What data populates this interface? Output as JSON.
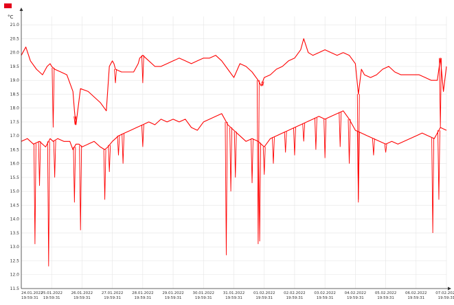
{
  "chart_data": {
    "type": "line",
    "title": "",
    "xlabel": "",
    "ylabel": "°C",
    "ylim": [
      11.5,
      21.3
    ],
    "yticks": [
      "21.0",
      "20.5",
      "20.0",
      "19.5",
      "19.0",
      "18.5",
      "18.0",
      "17.5",
      "17.0",
      "16.5",
      "16.0",
      "15.5",
      "15.0",
      "14.5",
      "14.0",
      "13.5",
      "13.0",
      "12.5",
      "12.0",
      "11.5"
    ],
    "xlim": [
      0,
      14
    ],
    "categories": [
      {
        "date": "24.01.2022",
        "time": "19:59:31"
      },
      {
        "date": "25.01.2022",
        "time": "19:59:31"
      },
      {
        "date": "26.01.2022",
        "time": "19:59:31"
      },
      {
        "date": "27.01.2022",
        "time": "19:59:31"
      },
      {
        "date": "28.01.2022",
        "time": "19:59:31"
      },
      {
        "date": "29.01.2022",
        "time": "19:59:31"
      },
      {
        "date": "30.01.2022",
        "time": "19:59:31"
      },
      {
        "date": "31.01.2022",
        "time": "19:59:31"
      },
      {
        "date": "01.02.2022",
        "time": "19:59:31"
      },
      {
        "date": "02.02.2022",
        "time": "19:59:31"
      },
      {
        "date": "03.02.2022",
        "time": "19:59:31"
      },
      {
        "date": "04.02.2022",
        "time": "19:59:31"
      },
      {
        "date": "05.02.2022",
        "time": "19:59:31"
      },
      {
        "date": "06.02.2022",
        "time": "19:59:31"
      },
      {
        "date": "07.02.2022",
        "time": "19:59:31"
      }
    ],
    "grid": true,
    "legend": "top-left",
    "series": [
      {
        "color": "#ff0000",
        "x": [
          0,
          0.15,
          0.3,
          0.5,
          0.7,
          0.85,
          0.95,
          1.0,
          1.1,
          1.3,
          1.5,
          1.7,
          1.75,
          1.8,
          1.95,
          2.2,
          2.4,
          2.6,
          2.8,
          2.9,
          3.0,
          3.05,
          3.1,
          3.3,
          3.5,
          3.7,
          3.85,
          3.9,
          4.0,
          4.2,
          4.4,
          4.6,
          4.8,
          5.0,
          5.2,
          5.4,
          5.6,
          5.8,
          6.0,
          6.2,
          6.4,
          6.6,
          6.8,
          7.0,
          7.2,
          7.4,
          7.6,
          7.8,
          7.9,
          8.0,
          8.2,
          8.4,
          8.6,
          8.8,
          9.0,
          9.2,
          9.3,
          9.45,
          9.6,
          9.8,
          10.0,
          10.2,
          10.4,
          10.6,
          10.8,
          11.0,
          11.1,
          11.2,
          11.3,
          11.5,
          11.7,
          11.9,
          12.1,
          12.3,
          12.5,
          12.7,
          12.9,
          13.1,
          13.3,
          13.5,
          13.7,
          13.8,
          13.9,
          14.0
        ],
        "y": [
          19.9,
          20.2,
          19.7,
          19.4,
          19.2,
          19.5,
          19.6,
          19.5,
          19.4,
          19.3,
          19.2,
          18.6,
          17.9,
          17.4,
          18.7,
          18.6,
          18.4,
          18.2,
          17.9,
          19.5,
          19.7,
          19.6,
          19.4,
          19.3,
          19.3,
          19.3,
          19.6,
          19.8,
          19.9,
          19.7,
          19.5,
          19.5,
          19.6,
          19.7,
          19.8,
          19.7,
          19.6,
          19.7,
          19.8,
          19.8,
          19.9,
          19.7,
          19.4,
          19.1,
          19.6,
          19.5,
          19.3,
          19.0,
          18.8,
          19.1,
          19.2,
          19.4,
          19.5,
          19.7,
          19.8,
          20.1,
          20.5,
          20.0,
          19.9,
          20.0,
          20.1,
          20.0,
          19.9,
          20.0,
          19.9,
          19.6,
          18.5,
          19.4,
          19.2,
          19.1,
          19.2,
          19.4,
          19.5,
          19.3,
          19.2,
          19.2,
          19.2,
          19.2,
          19.1,
          19.0,
          19.0,
          19.8,
          18.6,
          19.5
        ]
      },
      {
        "color": "#ff0000",
        "x": [
          0,
          0.2,
          0.4,
          0.6,
          0.8,
          0.95,
          1.05,
          1.2,
          1.4,
          1.6,
          1.7,
          1.8,
          1.9,
          2.0,
          2.2,
          2.4,
          2.6,
          2.75,
          2.85,
          3.0,
          3.2,
          3.4,
          3.6,
          3.8,
          4.0,
          4.2,
          4.4,
          4.6,
          4.8,
          5.0,
          5.2,
          5.4,
          5.6,
          5.8,
          6.0,
          6.2,
          6.4,
          6.6,
          6.8,
          7.0,
          7.2,
          7.4,
          7.6,
          7.8,
          8.0,
          8.2,
          8.4,
          8.6,
          8.8,
          9.0,
          9.2,
          9.4,
          9.6,
          9.8,
          10.0,
          10.2,
          10.4,
          10.6,
          10.8,
          11.0,
          11.2,
          11.4,
          11.6,
          11.8,
          12.0,
          12.2,
          12.4,
          12.6,
          12.8,
          13.0,
          13.2,
          13.4,
          13.6,
          13.8,
          14.0
        ],
        "y": [
          16.8,
          16.9,
          16.7,
          16.8,
          16.6,
          16.9,
          16.8,
          16.9,
          16.8,
          16.8,
          16.5,
          16.7,
          16.7,
          16.6,
          16.7,
          16.8,
          16.6,
          16.5,
          16.6,
          16.8,
          17.0,
          17.1,
          17.2,
          17.3,
          17.4,
          17.5,
          17.4,
          17.6,
          17.5,
          17.6,
          17.5,
          17.6,
          17.3,
          17.2,
          17.5,
          17.6,
          17.7,
          17.8,
          17.4,
          17.2,
          17.0,
          16.8,
          16.9,
          16.8,
          16.6,
          16.9,
          17.0,
          17.1,
          17.2,
          17.3,
          17.4,
          17.5,
          17.6,
          17.7,
          17.6,
          17.7,
          17.8,
          17.9,
          17.6,
          17.2,
          17.1,
          17.0,
          16.9,
          16.8,
          16.7,
          16.8,
          16.7,
          16.8,
          16.9,
          17.0,
          17.1,
          17.0,
          16.9,
          17.3,
          17.2
        ]
      }
    ],
    "dips": [
      {
        "series": 0,
        "x": 1.05,
        "y": 17.3
      },
      {
        "series": 0,
        "x": 1.77,
        "y": 17.4
      },
      {
        "series": 0,
        "x": 3.1,
        "y": 18.9
      },
      {
        "series": 0,
        "x": 4.0,
        "y": 18.9
      },
      {
        "series": 0,
        "x": 7.8,
        "y": 13.1
      },
      {
        "series": 0,
        "x": 7.95,
        "y": 18.8
      },
      {
        "series": 0,
        "x": 11.1,
        "y": 14.7
      },
      {
        "series": 0,
        "x": 13.8,
        "y": 17.3
      },
      {
        "series": 1,
        "x": 0.45,
        "y": 13.1
      },
      {
        "series": 1,
        "x": 0.6,
        "y": 15.2
      },
      {
        "series": 1,
        "x": 0.9,
        "y": 12.3
      },
      {
        "series": 1,
        "x": 1.1,
        "y": 15.5
      },
      {
        "series": 1,
        "x": 1.75,
        "y": 14.6
      },
      {
        "series": 1,
        "x": 1.95,
        "y": 13.6
      },
      {
        "series": 1,
        "x": 2.75,
        "y": 14.7
      },
      {
        "series": 1,
        "x": 2.9,
        "y": 15.7
      },
      {
        "series": 1,
        "x": 3.2,
        "y": 16.3
      },
      {
        "series": 1,
        "x": 3.35,
        "y": 16.0
      },
      {
        "series": 1,
        "x": 4.0,
        "y": 16.6
      },
      {
        "series": 1,
        "x": 6.75,
        "y": 12.7
      },
      {
        "series": 1,
        "x": 6.9,
        "y": 15.0
      },
      {
        "series": 1,
        "x": 7.05,
        "y": 15.5
      },
      {
        "series": 1,
        "x": 7.6,
        "y": 15.3
      },
      {
        "series": 1,
        "x": 7.85,
        "y": 13.2
      },
      {
        "series": 1,
        "x": 8.0,
        "y": 15.6
      },
      {
        "series": 1,
        "x": 8.3,
        "y": 16.0
      },
      {
        "series": 1,
        "x": 8.7,
        "y": 16.4
      },
      {
        "series": 1,
        "x": 9.0,
        "y": 16.3
      },
      {
        "series": 1,
        "x": 9.3,
        "y": 16.8
      },
      {
        "series": 1,
        "x": 9.7,
        "y": 16.5
      },
      {
        "series": 1,
        "x": 10.0,
        "y": 16.2
      },
      {
        "series": 1,
        "x": 10.5,
        "y": 16.6
      },
      {
        "series": 1,
        "x": 10.8,
        "y": 16.0
      },
      {
        "series": 1,
        "x": 11.1,
        "y": 14.6
      },
      {
        "series": 1,
        "x": 11.6,
        "y": 16.3
      },
      {
        "series": 1,
        "x": 12.0,
        "y": 16.4
      },
      {
        "series": 1,
        "x": 13.55,
        "y": 13.5
      },
      {
        "series": 1,
        "x": 13.75,
        "y": 14.7
      }
    ]
  }
}
